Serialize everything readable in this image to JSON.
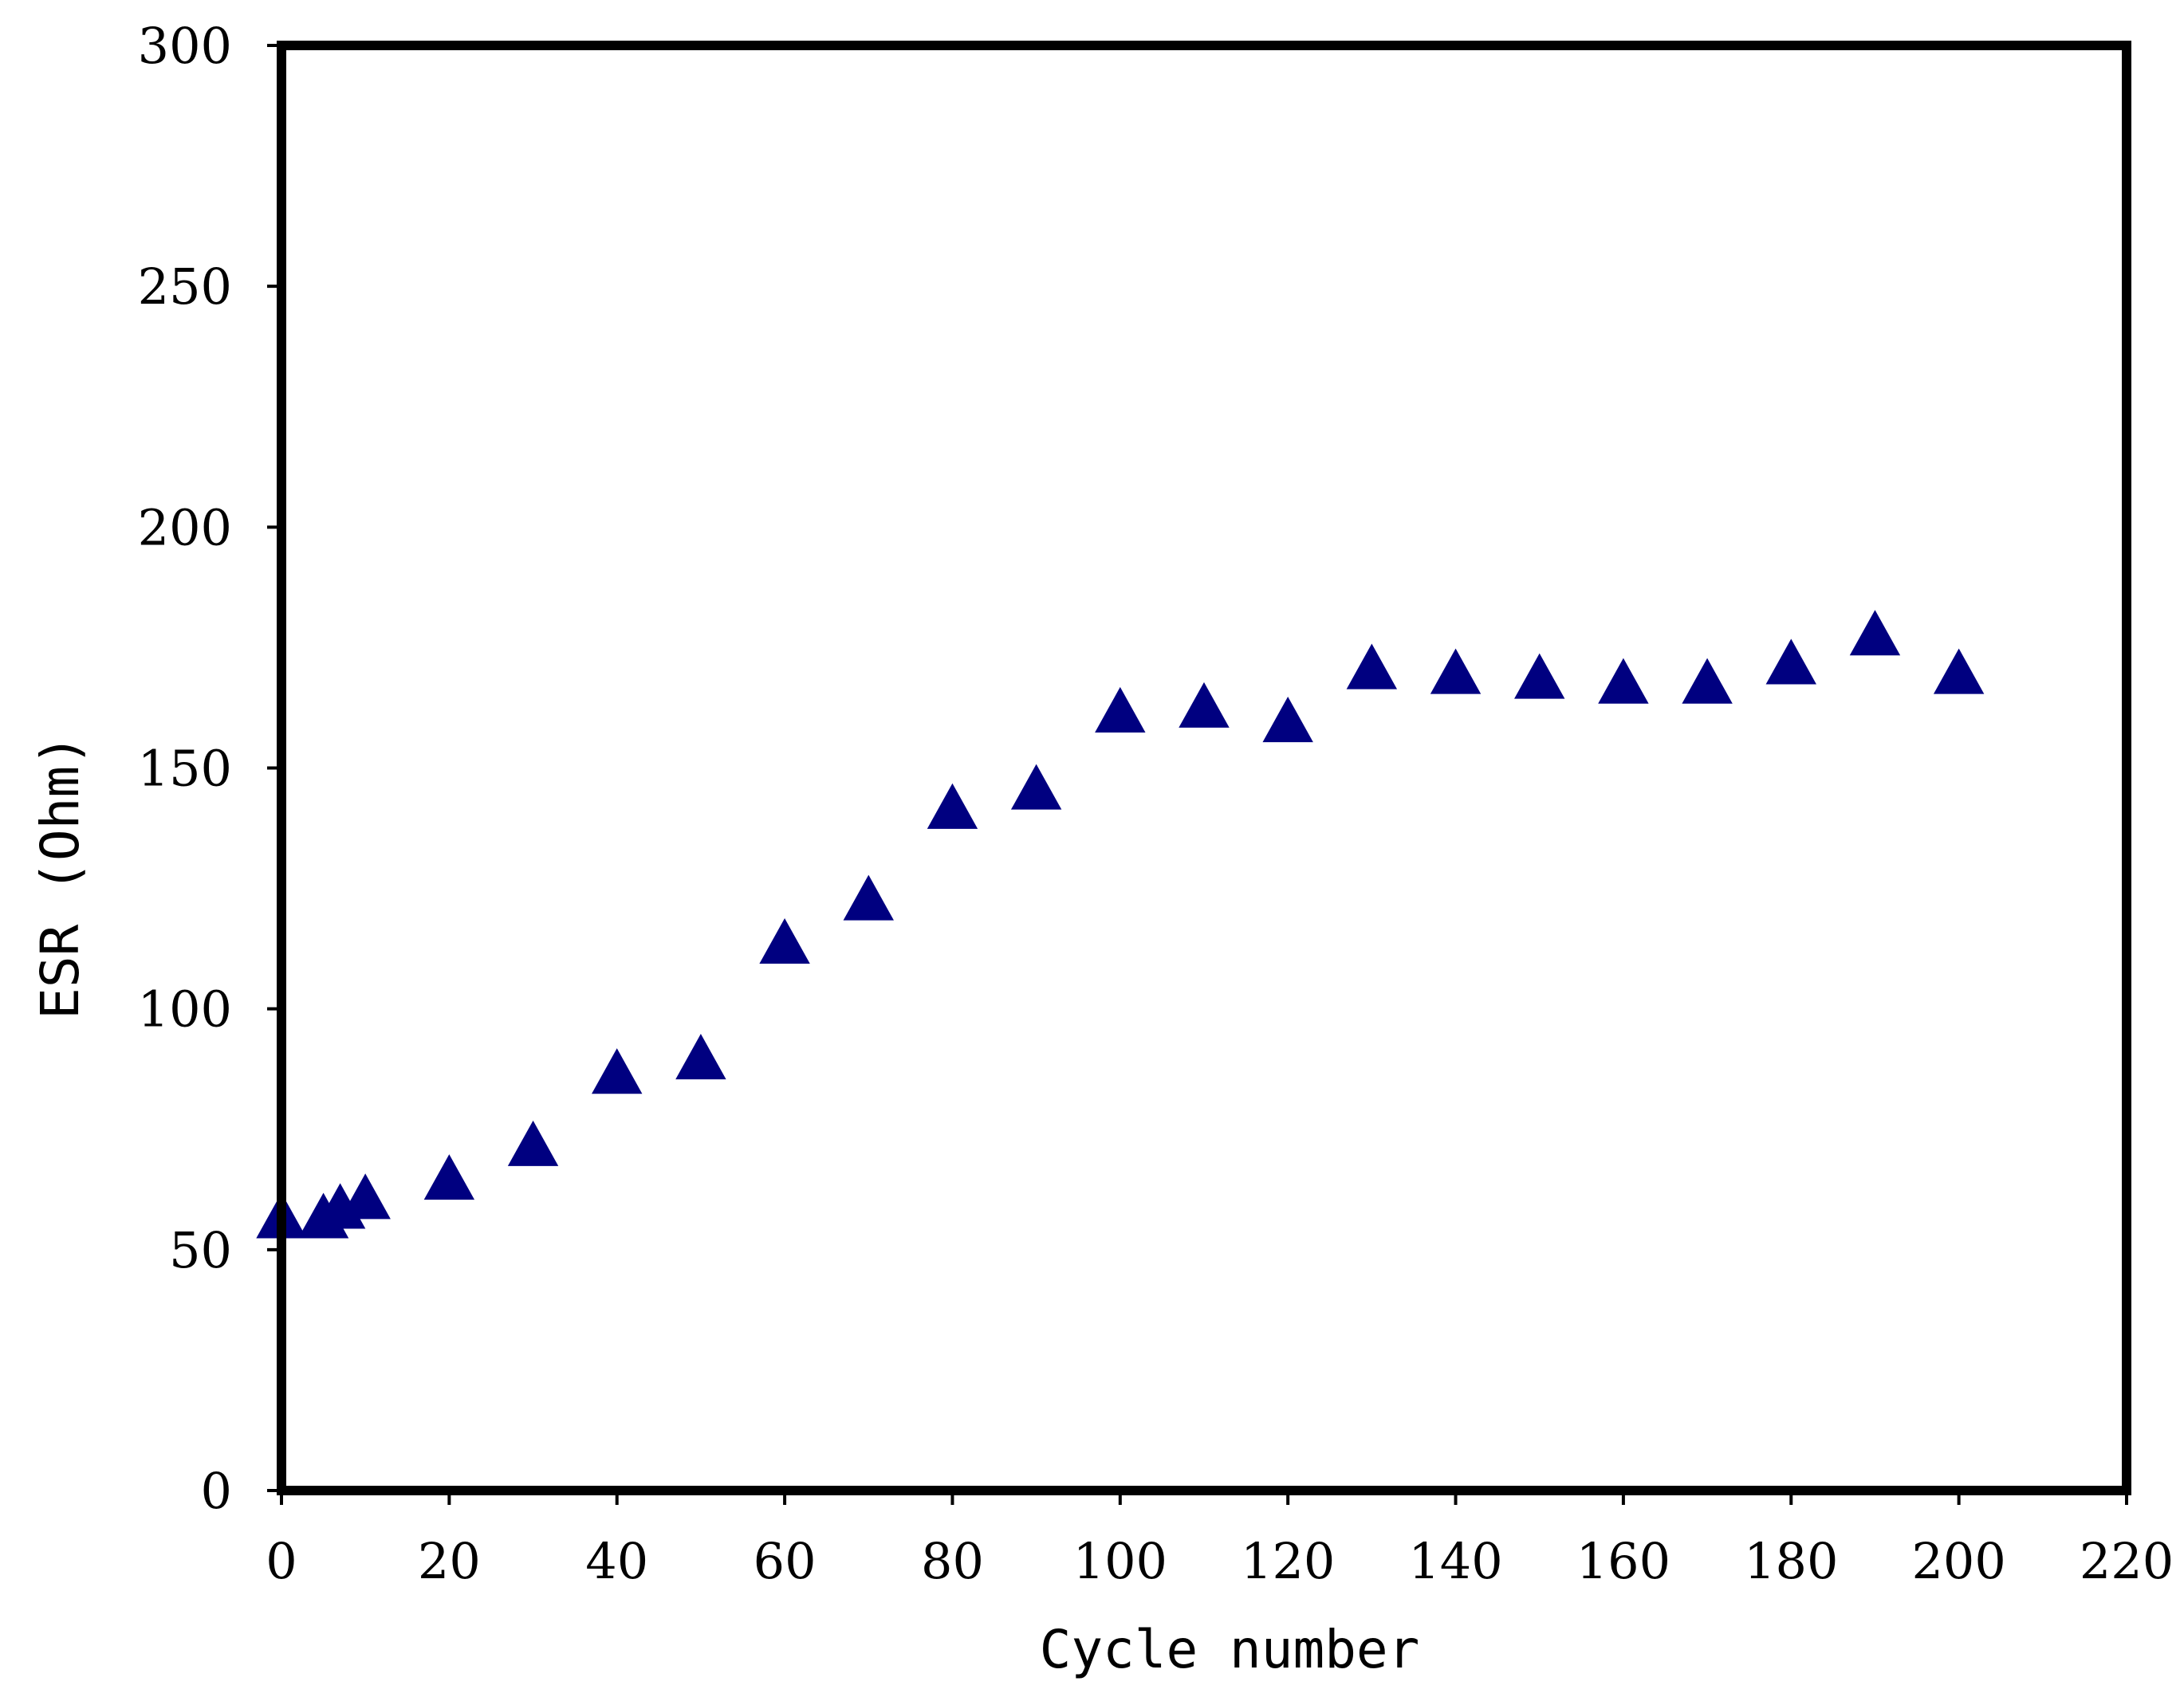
{
  "chart_data": {
    "type": "scatter",
    "title": "",
    "xlabel": "Cycle number",
    "ylabel": "ESR (Ohm)",
    "xlim": [
      0,
      220
    ],
    "ylim": [
      0,
      300
    ],
    "xticks": [
      0,
      20,
      40,
      60,
      80,
      100,
      120,
      140,
      160,
      180,
      200,
      220
    ],
    "yticks": [
      0,
      50,
      100,
      150,
      200,
      250,
      300
    ],
    "grid": false,
    "series": [
      {
        "name": "ESR",
        "marker": "triangle",
        "color": "#000080",
        "x": [
          0,
          5,
          7,
          10,
          20,
          30,
          40,
          50,
          60,
          70,
          80,
          90,
          100,
          110,
          120,
          130,
          140,
          150,
          160,
          170,
          180,
          190,
          200
        ],
        "y": [
          57,
          57,
          59,
          61,
          65,
          72,
          87,
          90,
          114,
          123,
          142,
          146,
          162,
          163,
          160,
          171,
          170,
          169,
          168,
          168,
          172,
          178,
          170
        ]
      }
    ]
  }
}
